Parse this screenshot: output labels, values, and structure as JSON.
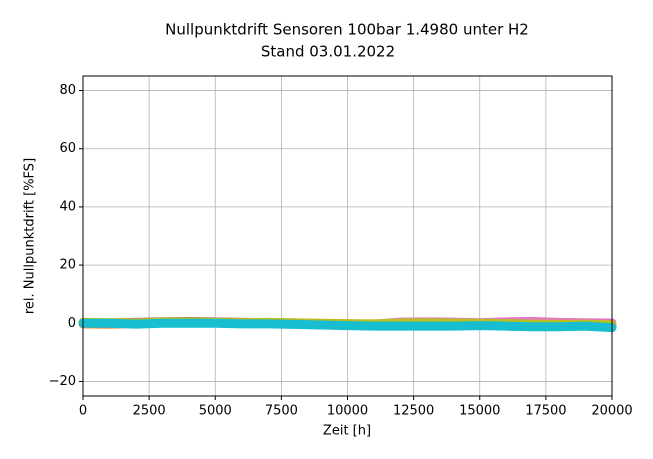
{
  "chart_data": {
    "type": "line",
    "title": "Nullpunktdrift Sensoren 100bar 1.4980 unter H2",
    "subtitle": "Stand 03.01.2022",
    "x_label": "Zeit [h]",
    "y_label": "rel. Nullpunktdrift [%FS]",
    "x": [
      0,
      1000,
      2000,
      3000,
      4000,
      5000,
      6000,
      7000,
      8000,
      9000,
      10000,
      11000,
      12000,
      13000,
      14000,
      15000,
      16000,
      17000,
      18000,
      19000,
      20000
    ],
    "series": [
      {
        "color": "#8c564b",
        "values": [
          0.2,
          0.1,
          0.3,
          0.5,
          0.6,
          0.5,
          0.3,
          0.2,
          0.1,
          -0.2,
          -0.4,
          -0.6,
          0.2,
          0.3,
          0.2,
          -0.3,
          -0.5,
          -0.8,
          -0.9,
          -0.7,
          -1.0
        ]
      },
      {
        "color": "#ff7f0e",
        "values": [
          -0.2,
          -0.3,
          -0.1,
          0.2,
          0.3,
          0.2,
          0.1,
          0.0,
          -0.1,
          -0.3,
          -0.5,
          -0.4,
          0.0,
          0.1,
          0.0,
          -0.2,
          -0.3,
          -0.6,
          -0.8,
          -0.6,
          -0.9
        ]
      },
      {
        "color": "#e377c2",
        "values": [
          0.1,
          0.0,
          0.2,
          0.3,
          0.4,
          0.4,
          0.2,
          0.1,
          0.0,
          -0.1,
          -0.2,
          -0.3,
          0.4,
          0.5,
          0.4,
          0.2,
          0.5,
          0.6,
          0.3,
          0.2,
          0.1
        ]
      },
      {
        "color": "#bcbd22",
        "values": [
          0.3,
          0.2,
          0.1,
          0.4,
          0.5,
          0.3,
          0.2,
          0.3,
          0.2,
          0.0,
          -0.1,
          -0.2,
          0.1,
          0.2,
          0.1,
          0.0,
          -0.1,
          -0.3,
          -0.4,
          -0.3,
          -0.5
        ]
      },
      {
        "color": "#17becf",
        "values": [
          0.0,
          0.0,
          -0.3,
          0.0,
          0.0,
          0.0,
          -0.2,
          -0.2,
          -0.4,
          -0.6,
          -0.8,
          -1.0,
          -1.0,
          -1.0,
          -1.0,
          -0.8,
          -1.0,
          -1.2,
          -1.2,
          -1.0,
          -1.5
        ]
      }
    ],
    "xlim": [
      0,
      20000
    ],
    "xticks": [
      0,
      2500,
      5000,
      7500,
      10000,
      12500,
      15000,
      17500,
      20000
    ],
    "ylim": [
      -25,
      85
    ],
    "yticks": [
      {
        "value": -20,
        "label": "−20"
      },
      0,
      20,
      40,
      60,
      80
    ],
    "grid": true
  }
}
